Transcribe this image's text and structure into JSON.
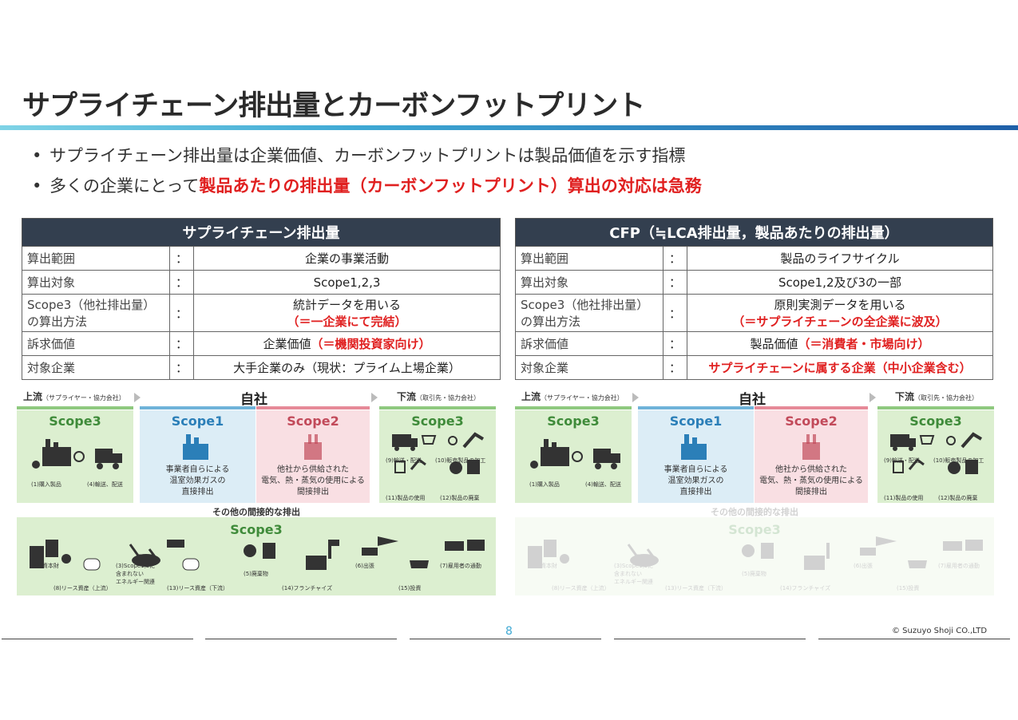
{
  "title": "サプライチェーン排出量とカーボンフットプリント",
  "bullets": {
    "b1": "サプライチェーン排出量は企業価値、カーボンフットプリントは製品価値を示す指標",
    "b2_prefix": "多くの企業にとって",
    "b2_highlight": "製品あたりの排出量（カーボンフットプリント）算出の対応は急務"
  },
  "bullet_marker": "•",
  "left_table": {
    "header": "サプライチェーン排出量",
    "rows": [
      {
        "key": "算出範囲",
        "colon": "：",
        "value": "企業の事業活動",
        "value_red": ""
      },
      {
        "key": "算出対象",
        "colon": "：",
        "value": "Scope1,2,3",
        "value_red": ""
      },
      {
        "key1": "Scope3（他社排出量）",
        "key2": "の算出方法",
        "colon": "：",
        "value": "統計データを用いる",
        "value_red": "（＝一企業にて完結）"
      },
      {
        "key": "訴求価値",
        "colon": "：",
        "value": "企業価値",
        "value_red": "（＝機関投資家向け）"
      },
      {
        "key": "対象企業",
        "colon": "：",
        "value": "大手企業のみ（現状：プライム上場企業）",
        "value_red": ""
      }
    ]
  },
  "right_table": {
    "header": "CFP（≒LCA排出量，製品あたりの排出量）",
    "rows": [
      {
        "key": "算出範囲",
        "colon": "：",
        "value": "製品のライフサイクル",
        "value_red": ""
      },
      {
        "key": "算出対象",
        "colon": "：",
        "value": "Scope1,2及び3の一部",
        "value_red": ""
      },
      {
        "key1": "Scope3（他社排出量）",
        "key2": "の算出方法",
        "colon": "：",
        "value": "原則実測データを用いる",
        "value_red": "（＝サプライチェーンの全企業に波及）"
      },
      {
        "key": "訴求価値",
        "colon": "：",
        "value": "製品価値",
        "value_red": "（＝消費者・市場向け）"
      },
      {
        "key": "対象企業",
        "colon": "：",
        "value": "",
        "value_red": "サプライチェーンに属する企業（中小企業含む）"
      }
    ]
  },
  "diagram": {
    "upstream": "上流",
    "upstream_sub": "（サプライヤー・協力会社）",
    "own": "自社",
    "downstream": "下流",
    "downstream_sub": "（取引先・協力会社）",
    "scope1": "Scope1",
    "scope2": "Scope2",
    "scope3": "Scope3",
    "scope1_desc": [
      "事業者自らによる",
      "温室効果ガスの",
      "直接排出"
    ],
    "scope2_desc": [
      "他社から供給された",
      "電気、熱・蒸気の使用による",
      "間接排出"
    ],
    "up_items": [
      "(1)購入製品",
      "(4)輸送、配送"
    ],
    "down_items": [
      "(9)輸送・配送",
      "(10)販売製品の加工",
      "(11)製品の使用",
      "(12)製品の廃棄"
    ],
    "indirect": "その他の間接的な排出",
    "bottom_items": [
      "(2)資本財",
      "(3)Scope1,2に",
      "含まれない",
      "エネルギー関連",
      "(5)廃棄物",
      "(6)出張",
      "(7)雇用者の通勤",
      "(8)リース資産（上流）",
      "(13)リース資産（下流）",
      "(14)フランチャイズ",
      "(15)投資"
    ],
    "lease_tag": "lease"
  },
  "page_number": "8",
  "copyright": "© Suzuyo Shoji CO.,LTD",
  "colors": {
    "accent_red": "#e02020",
    "header_navy": "#333f4f",
    "green": "#dcefd0",
    "blue": "#dcedf6",
    "pink": "#f9dfe3"
  },
  "icons": [
    "factory-icon",
    "truck-icon",
    "cart-icon",
    "lightbulb-icon",
    "trash-icon",
    "airplane-icon",
    "car-icon",
    "bus-icon",
    "building-icon",
    "money-icon",
    "crane-icon"
  ]
}
